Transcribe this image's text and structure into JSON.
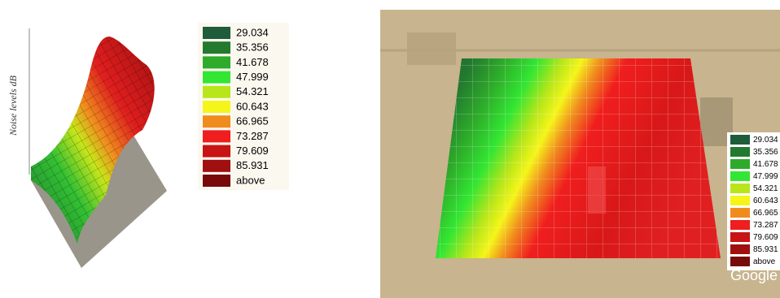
{
  "axis_label": "Noise levels dB",
  "legend": {
    "items": [
      {
        "label": "29.034",
        "color": "#1e5c3a"
      },
      {
        "label": "35.356",
        "color": "#237a2f"
      },
      {
        "label": "41.678",
        "color": "#2eab2a"
      },
      {
        "label": "47.999",
        "color": "#33e633"
      },
      {
        "label": "54.321",
        "color": "#b8e61a"
      },
      {
        "label": "60.643",
        "color": "#f5f51a"
      },
      {
        "label": "66.965",
        "color": "#f08c1e"
      },
      {
        "label": "73.287",
        "color": "#f01e1e"
      },
      {
        "label": "79.609",
        "color": "#c81414"
      },
      {
        "label": "85.931",
        "color": "#a01010"
      },
      {
        "label": "above",
        "color": "#780a0a"
      }
    ]
  },
  "watermark": "Google"
}
